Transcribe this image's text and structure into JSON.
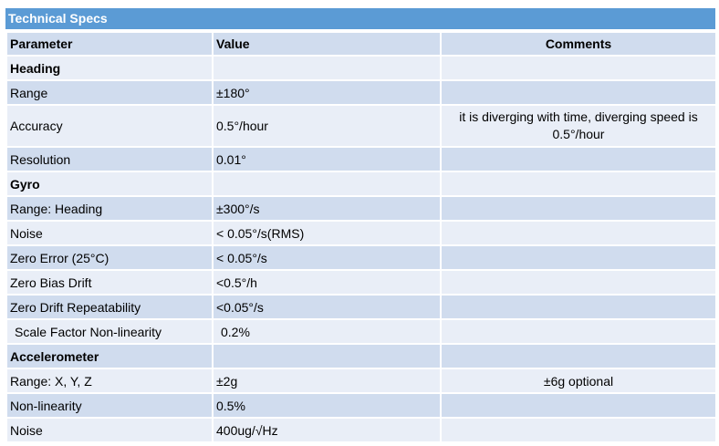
{
  "title": "Technical Specs",
  "columns": {
    "parameter": "Parameter",
    "value": "Value",
    "comments": "Comments"
  },
  "sections": [
    {
      "name": "Heading",
      "rows": [
        {
          "parameter": "Range",
          "value": "±180°",
          "comment": ""
        },
        {
          "parameter": "Accuracy",
          "value": "0.5°/hour",
          "comment_line1": "it is diverging with time, diverging speed is",
          "comment_line2": "0.5°/hour"
        },
        {
          "parameter": "Resolution",
          "value": "0.01°",
          "comment": ""
        }
      ]
    },
    {
      "name": "Gyro",
      "rows": [
        {
          "parameter": "Range: Heading",
          "value": "±300°/s",
          "comment": ""
        },
        {
          "parameter": "Noise",
          "value": "< 0.05°/s(RMS)",
          "comment": ""
        },
        {
          "parameter": "Zero Error (25°C)",
          "value": "< 0.05°/s",
          "comment": ""
        },
        {
          "parameter": "Zero Bias Drift",
          "value": "<0.5°/h",
          "comment": ""
        },
        {
          "parameter": "Zero Drift Repeatability",
          "value": "<0.05°/s",
          "comment": ""
        },
        {
          "parameter": "Scale Factor Non-linearity",
          "value": "0.2%",
          "comment": ""
        }
      ]
    },
    {
      "name": "Accelerometer",
      "rows": [
        {
          "parameter": "Range: X, Y, Z",
          "value": "±2g",
          "comment": "±6g optional"
        },
        {
          "parameter": "Non-linearity",
          "value": "0.5%",
          "comment": ""
        },
        {
          "parameter": "Noise",
          "value": "400ug/√Hz",
          "comment": ""
        }
      ]
    }
  ],
  "colors": {
    "title_bar": "#5b9bd5",
    "row_dark": "#d0dcee",
    "row_light": "#e9eef7",
    "cell_border": "#ffffff"
  }
}
